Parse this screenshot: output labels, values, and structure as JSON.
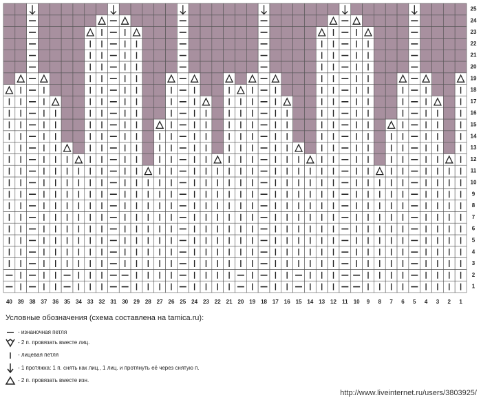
{
  "grid": {
    "columns": [
      "40",
      "39",
      "38",
      "37",
      "36",
      "35",
      "34",
      "33",
      "32",
      "31",
      "30",
      "29",
      "28",
      "27",
      "26",
      "25",
      "24",
      "23",
      "22",
      "21",
      "20",
      "19",
      "18",
      "17",
      "16",
      "15",
      "14",
      "13",
      "12",
      "11",
      "10",
      "9",
      "8",
      "7",
      "6",
      "5",
      "4",
      "3",
      "2",
      "1"
    ],
    "rows": [
      "1",
      "2",
      "3",
      "4",
      "5",
      "6",
      "7",
      "8",
      "9",
      "10",
      "11",
      "12",
      "13",
      "14",
      "15",
      "16",
      "17",
      "18",
      "19",
      "20",
      "21",
      "22",
      "23",
      "24",
      "25"
    ]
  },
  "legend": {
    "title": "Условные обозначения (схема составлена на tamica.ru):",
    "items": [
      "- изнаночная петля",
      "- 2 п. провязать вместе лиц.",
      "- лицевая петля",
      "- 1 протяжка: 1 п. снять как лиц., 1 лиц. и протянуть её через снятую п.",
      "- 2 п. провязать вместе изн."
    ]
  },
  "watermark": "http://www.liveinternet.ru/users/3803925/"
}
